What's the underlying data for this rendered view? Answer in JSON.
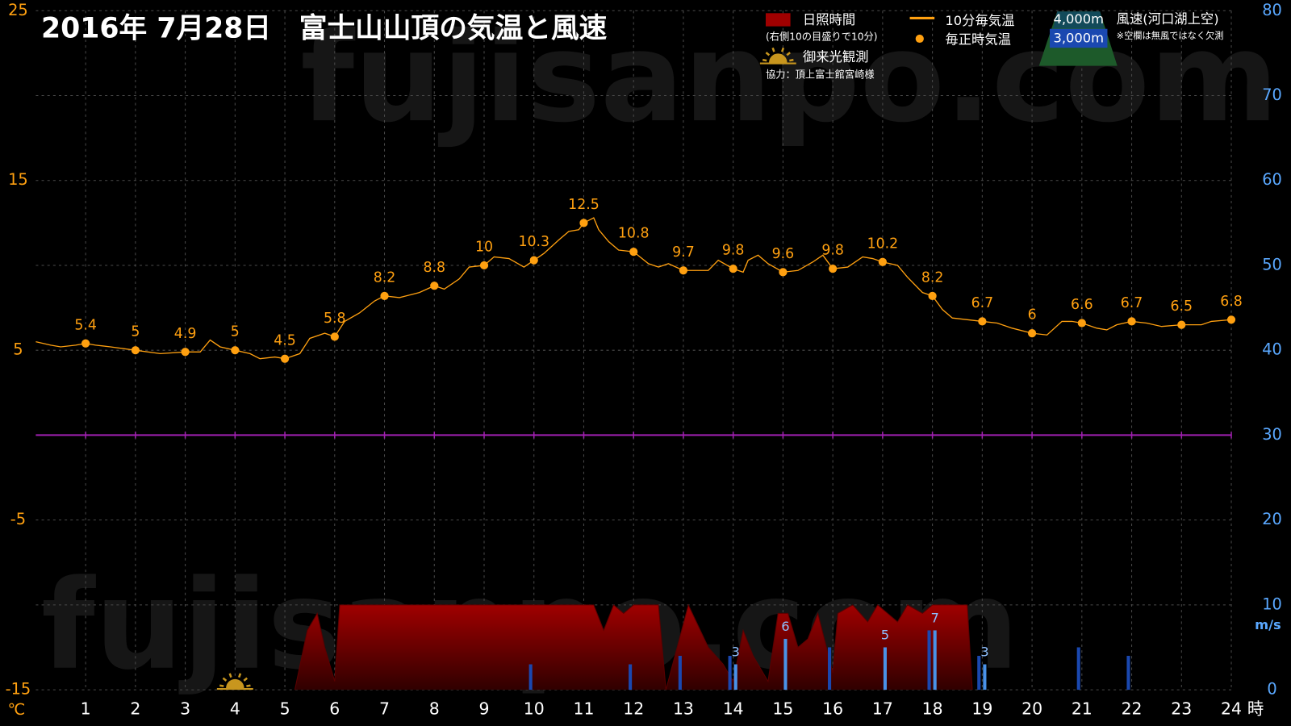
{
  "chart_data": {
    "type": "line",
    "title": "2016年  7月28日　富士山山頂の気温と風速",
    "watermark": "fujisanpo.com",
    "xlim": [
      0,
      24
    ],
    "xticks": [
      1,
      2,
      3,
      4,
      5,
      6,
      7,
      8,
      9,
      10,
      11,
      12,
      13,
      14,
      15,
      16,
      17,
      18,
      19,
      20,
      21,
      22,
      23,
      24
    ],
    "x_unit": "時",
    "ylim": [
      -15,
      25
    ],
    "yticks": [
      -15,
      -5,
      5,
      15,
      25
    ],
    "y_unit": "℃",
    "y2lim": [
      0,
      80
    ],
    "y2ticks": [
      0,
      10,
      20,
      30,
      40,
      50,
      60,
      70,
      80
    ],
    "y2_unit": "m/s",
    "grid": true,
    "zero_line": {
      "value": 0,
      "color": "#a020b0"
    },
    "sunrise_x": 4,
    "legend_notes": {
      "sunshine": "(右側10の目盛りで10分)",
      "sunrise": "御来光観測",
      "credit": "協力：頂上富士館宮崎様",
      "wind": "風速(河口湖上空)",
      "missing": "※空欄は無風ではなく欠測"
    },
    "series": [
      {
        "name": "日照時間",
        "type": "area",
        "axis": "y2",
        "color": "#a00000",
        "x": [
          5.2,
          5.45,
          5.65,
          5.8,
          6.0,
          6.1,
          11.2,
          11.4,
          11.6,
          11.8,
          12.0,
          12.5,
          12.65,
          13.1,
          13.5,
          13.8,
          14.0,
          14.2,
          14.4,
          14.7,
          14.9,
          15.1,
          15.3,
          15.5,
          15.7,
          16.0,
          16.1,
          16.4,
          16.7,
          16.9,
          17.3,
          17.5,
          17.8,
          18.0,
          18.7,
          18.8
        ],
        "values": [
          0,
          7,
          9,
          5,
          1,
          10,
          10,
          7,
          10,
          9,
          10,
          10,
          0,
          10,
          5,
          3,
          1,
          7,
          4,
          1,
          9,
          9,
          5,
          6,
          9,
          2,
          9,
          10,
          8,
          10,
          8,
          10,
          9,
          10,
          10,
          0
        ]
      },
      {
        "name": "10分毎気温",
        "type": "line",
        "color": "#ffa010",
        "x": [
          0,
          0.3,
          0.5,
          0.8,
          1,
          1.2,
          1.5,
          2,
          2.5,
          3,
          3.3,
          3.5,
          3.7,
          4,
          4.3,
          4.5,
          4.8,
          5,
          5.3,
          5.5,
          5.8,
          6,
          6.2,
          6.5,
          6.8,
          7,
          7.3,
          7.7,
          8,
          8.2,
          8.5,
          8.7,
          9,
          9.2,
          9.5,
          9.8,
          10,
          10.2,
          10.5,
          10.7,
          10.9,
          11,
          11.2,
          11.3,
          11.5,
          11.7,
          12,
          12.3,
          12.5,
          12.7,
          13,
          13.3,
          13.5,
          13.7,
          14,
          14.2,
          14.3,
          14.5,
          14.7,
          15,
          15.3,
          15.6,
          15.8,
          16,
          16.3,
          16.6,
          16.8,
          17,
          17.3,
          17.5,
          17.8,
          18,
          18.2,
          18.4,
          18.7,
          19,
          19.3,
          19.6,
          20,
          20.3,
          20.6,
          20.8,
          21,
          21.3,
          21.5,
          21.7,
          22,
          22.3,
          22.6,
          23,
          23.4,
          23.6,
          24
        ],
        "values": [
          5.5,
          5.3,
          5.2,
          5.3,
          5.4,
          5.3,
          5.2,
          5,
          4.8,
          4.9,
          4.9,
          5.6,
          5.2,
          5,
          4.8,
          4.5,
          4.6,
          4.5,
          4.8,
          5.7,
          6,
          5.8,
          6.7,
          7.2,
          7.9,
          8.2,
          8.1,
          8.4,
          8.8,
          8.6,
          9.2,
          9.9,
          10,
          10.5,
          10.4,
          9.9,
          10.3,
          10.7,
          11.5,
          12,
          12.1,
          12.5,
          12.8,
          12.1,
          11.4,
          10.9,
          10.8,
          10.1,
          9.9,
          10.1,
          9.7,
          9.7,
          9.7,
          10.3,
          9.8,
          9.6,
          10.3,
          10.6,
          10.1,
          9.6,
          9.7,
          10.2,
          10.6,
          9.8,
          9.9,
          10.5,
          10.4,
          10.2,
          10,
          9.3,
          8.4,
          8.2,
          7.4,
          6.9,
          6.8,
          6.7,
          6.6,
          6.3,
          6,
          5.9,
          6.7,
          6.7,
          6.6,
          6.3,
          6.2,
          6.5,
          6.7,
          6.6,
          6.4,
          6.5,
          6.5,
          6.7,
          6.8
        ]
      },
      {
        "name": "毎正時気温",
        "type": "scatter",
        "color": "#ffa010",
        "show_values": true,
        "x": [
          1,
          2,
          3,
          4,
          5,
          6,
          7,
          8,
          9,
          10,
          11,
          12,
          13,
          14,
          15,
          16,
          17,
          18,
          19,
          20,
          21,
          22,
          23,
          24
        ],
        "values": [
          5.4,
          5,
          4.9,
          5,
          4.5,
          5.8,
          8.2,
          8.8,
          10,
          10.3,
          12.5,
          10.8,
          9.7,
          9.8,
          9.6,
          9.8,
          10.2,
          8.2,
          6.7,
          6,
          6.6,
          6.7,
          6.5,
          6.8
        ]
      },
      {
        "name": "4,000m",
        "type": "bar",
        "axis": "y2",
        "color": "#1a48b0",
        "x": [
          10,
          12,
          13,
          14,
          16,
          18,
          19,
          21,
          22
        ],
        "values": [
          3,
          3,
          4,
          4,
          5,
          7,
          4,
          5,
          4
        ]
      },
      {
        "name": "3,000m",
        "type": "bar",
        "axis": "y2",
        "color": "#4a92e8",
        "show_values": true,
        "x": [
          14,
          15,
          17,
          18,
          19
        ],
        "values": [
          3,
          6,
          5,
          7,
          3
        ]
      }
    ]
  }
}
